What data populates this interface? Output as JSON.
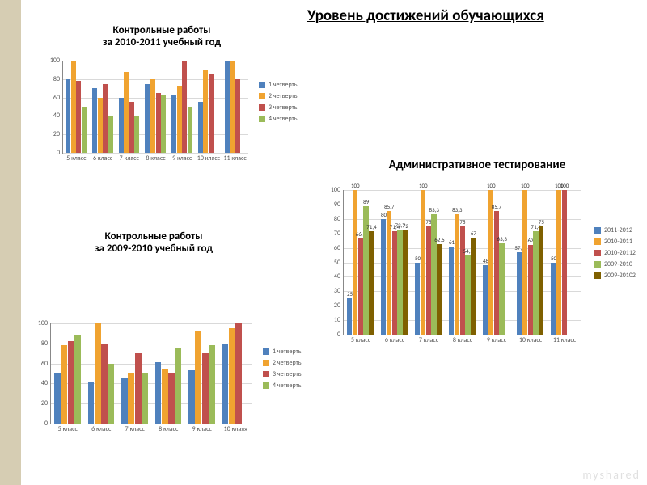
{
  "page": {
    "title": "Уровень достижений обучающихся",
    "background": "#ffffff",
    "left_band_color": "#d6cdb3",
    "watermark": "myshared"
  },
  "chart_top_left": {
    "title": "Контрольные работы\nза 2010-2011 учебный год",
    "type": "bar",
    "categories": [
      "5 класс",
      "6 класс",
      "7 класс",
      "8 класс",
      "9 класс",
      "10 класс",
      "11 класс"
    ],
    "series": [
      {
        "name": "1 четверть",
        "color": "#4f81bd",
        "values": [
          80,
          70,
          60,
          75,
          63,
          55,
          100
        ]
      },
      {
        "name": "2 четверть",
        "color": "#f0a330",
        "values": [
          100,
          60,
          88,
          80,
          72,
          90,
          100
        ]
      },
      {
        "name": "3 четверть",
        "color": "#c0504d",
        "values": [
          78,
          75,
          55,
          65,
          100,
          85,
          80
        ]
      },
      {
        "name": "4 четверть",
        "color": "#9bbb59",
        "values": [
          50,
          40,
          40,
          63,
          50,
          null,
          null
        ]
      }
    ],
    "legend_labels": [
      "1 четверть",
      "2 четверть",
      "3 четверть",
      "4 четверть"
    ],
    "legend_colors": [
      "#4f81bd",
      "#f0a330",
      "#c0504d",
      "#9bbb59"
    ],
    "ylim": [
      0,
      100
    ],
    "ytick_step": 20,
    "grid_color": "#d9d9d9",
    "title_fontsize": 13
  },
  "chart_bottom_left": {
    "title": "Контрольные работы\nза 2009-2010 учебный год",
    "type": "bar",
    "categories": [
      "5 класс",
      "6 класс",
      "7 класс",
      "8 класс",
      "9 класс",
      "10 клаяя"
    ],
    "series": [
      {
        "name": "1 четверть",
        "color": "#4f81bd",
        "values": [
          50,
          42,
          45,
          61,
          53,
          80
        ]
      },
      {
        "name": "2 четверть",
        "color": "#f0a330",
        "values": [
          78,
          100,
          50,
          55,
          92,
          95
        ]
      },
      {
        "name": "3 четверть",
        "color": "#c0504d",
        "values": [
          82,
          80,
          70,
          50,
          70,
          100
        ]
      },
      {
        "name": "4 четверть",
        "color": "#9bbb59",
        "values": [
          88,
          60,
          50,
          75,
          78,
          null
        ]
      }
    ],
    "legend_labels": [
      "1 четверть",
      "2 четверть",
      "3 четверть",
      "4 четверть"
    ],
    "legend_colors": [
      "#4f81bd",
      "#f0a330",
      "#c0504d",
      "#9bbb59"
    ],
    "ylim": [
      0,
      100
    ],
    "ytick_step": 20,
    "grid_color": "#d9d9d9",
    "title_fontsize": 13
  },
  "chart_right": {
    "title": "Административное тестирование",
    "type": "bar",
    "categories": [
      "5 класс",
      "6 класс",
      "7 класс",
      "8 класс",
      "9 класс",
      "10 класс",
      "11 класс"
    ],
    "series": [
      {
        "name": "2011-2012",
        "color": "#4f81bd",
        "values": [
          25,
          80,
          50,
          61,
          48,
          57.1,
          50
        ],
        "labels": [
          "25",
          "80",
          "50",
          "61",
          "48",
          "57,1",
          "50"
        ]
      },
      {
        "name": "2010-2011",
        "color": "#f0a330",
        "values": [
          100,
          85.7,
          100,
          83.3,
          100,
          100,
          100
        ],
        "labels": [
          "100",
          "85,7",
          "100",
          "83,3",
          "100",
          "100",
          "100"
        ]
      },
      {
        "name": "2010-20112",
        "color": "#c0504d",
        "values": [
          66.6,
          71.4,
          75,
          75,
          85.7,
          62,
          100
        ],
        "labels": [
          "66,6",
          "71,4",
          "75",
          "75",
          "85,7",
          "62",
          "100"
        ]
      },
      {
        "name": "2009-2010",
        "color": "#9bbb59",
        "values": [
          89,
          72.7,
          83.3,
          54.5,
          63.3,
          71.4,
          null
        ],
        "labels": [
          "89",
          "72,7",
          "83,3",
          "54,5",
          "63,3",
          "71,4",
          ""
        ]
      },
      {
        "name": "2009-20102",
        "color": "#7f6000",
        "values": [
          71.4,
          72,
          62.5,
          67,
          null,
          75,
          null
        ],
        "labels": [
          "71,4",
          "72",
          "62,5",
          "67",
          "",
          "75",
          ""
        ]
      }
    ],
    "legend_labels": [
      "2011-2012",
      "2010-2011",
      "2010-20112",
      "2009-2010",
      "2009-20102"
    ],
    "legend_colors": [
      "#4f81bd",
      "#f0a330",
      "#c0504d",
      "#9bbb59",
      "#7f6000"
    ],
    "ylim": [
      0,
      100
    ],
    "ytick_step": 10,
    "grid_color": "#d9d9d9",
    "title_fontsize": 15,
    "show_data_labels": true
  }
}
